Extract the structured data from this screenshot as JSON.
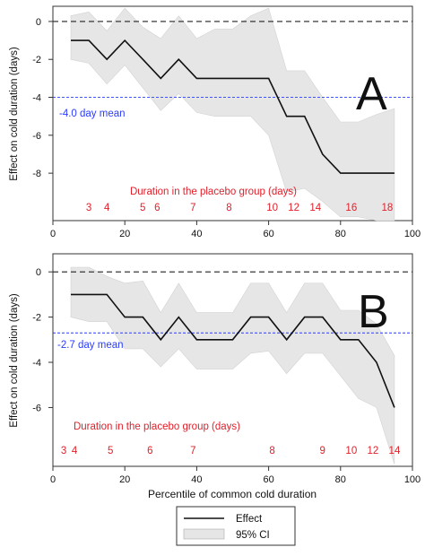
{
  "chart_data": [
    {
      "type": "line",
      "panel_label": "A",
      "ylabel": "Effect on cold duration (days)",
      "xlabel": "",
      "xlim": [
        0,
        100
      ],
      "ylim": [
        -10.5,
        0.8
      ],
      "xticks": [
        0,
        20,
        40,
        60,
        80,
        100
      ],
      "yticks": [
        0,
        -2,
        -4,
        -6,
        -8
      ],
      "x": [
        5,
        10,
        15,
        20,
        25,
        30,
        35,
        40,
        45,
        50,
        55,
        60,
        65,
        70,
        75,
        80,
        85,
        90,
        95
      ],
      "effect": [
        -1,
        -1,
        -2,
        -1,
        -2,
        -3,
        -2,
        -3,
        -3,
        -3,
        -3,
        -3,
        -5,
        -5,
        -7,
        -8,
        -8,
        -8,
        -8
      ],
      "ci_upper": [
        0.3,
        0.5,
        -0.5,
        0.7,
        -0.3,
        -0.9,
        0.3,
        -0.9,
        -0.4,
        -0.4,
        0.3,
        0.7,
        -2.6,
        -2.6,
        -4.0,
        -5.3,
        -5.3,
        -4.9,
        -4.6
      ],
      "ci_lower": [
        -2.0,
        -2.2,
        -3.3,
        -2.3,
        -3.5,
        -4.7,
        -3.8,
        -4.8,
        -5.0,
        -5.0,
        -5.0,
        -6.0,
        -9.0,
        -8.8,
        -9.5,
        -10.3,
        -10.3,
        -10.5,
        -10.5
      ],
      "reference_lines": [
        {
          "y": 0,
          "color": "#222222",
          "style": "dashed"
        },
        {
          "y": -4.0,
          "color": "#2a3cff",
          "style": "dashed",
          "label": "-4.0 day mean"
        }
      ],
      "placebo_title": "Duration in the placebo group (days)",
      "placebo_durations": [
        {
          "x": 10,
          "label": "3"
        },
        {
          "x": 15,
          "label": "4"
        },
        {
          "x": 25,
          "label": "5"
        },
        {
          "x": 29,
          "label": "6"
        },
        {
          "x": 39,
          "label": "7"
        },
        {
          "x": 49,
          "label": "8"
        },
        {
          "x": 61,
          "label": "10"
        },
        {
          "x": 67,
          "label": "12"
        },
        {
          "x": 73,
          "label": "14"
        },
        {
          "x": 83,
          "label": "16"
        },
        {
          "x": 93,
          "label": "18"
        }
      ]
    },
    {
      "type": "line",
      "panel_label": "B",
      "ylabel": "Effect on cold duration (days)",
      "xlabel": "Percentile of common cold duration",
      "xlim": [
        0,
        100
      ],
      "ylim": [
        -8.6,
        0.8
      ],
      "xticks": [
        0,
        20,
        40,
        60,
        80,
        100
      ],
      "yticks": [
        0,
        -2,
        -4,
        -6
      ],
      "x": [
        5,
        10,
        15,
        20,
        25,
        30,
        35,
        40,
        45,
        50,
        55,
        60,
        65,
        70,
        75,
        80,
        85,
        90,
        95
      ],
      "effect": [
        -1,
        -1,
        -1,
        -2,
        -2,
        -3,
        -2,
        -3,
        -3,
        -3,
        -2,
        -2,
        -3,
        -2,
        -2,
        -3,
        -3,
        -4,
        -6
      ],
      "ci_upper": [
        0.2,
        0.2,
        -0.2,
        -0.5,
        -0.4,
        -1.8,
        -0.5,
        -1.8,
        -1.8,
        -1.8,
        -0.5,
        -0.5,
        -1.8,
        -0.5,
        -0.5,
        -1.7,
        -1.7,
        -2.3,
        -3.7
      ],
      "ci_lower": [
        -2.0,
        -2.2,
        -2.2,
        -3.4,
        -3.4,
        -4.2,
        -3.4,
        -4.3,
        -4.3,
        -4.3,
        -3.6,
        -3.5,
        -4.5,
        -3.6,
        -3.6,
        -4.6,
        -5.6,
        -6.0,
        -8.5
      ],
      "reference_lines": [
        {
          "y": 0,
          "color": "#222222",
          "style": "dashed"
        },
        {
          "y": -2.7,
          "color": "#2a3cff",
          "style": "dashed",
          "label": "-2.7 day mean"
        }
      ],
      "placebo_title": "Duration in the placebo group (days)",
      "placebo_durations": [
        {
          "x": 3,
          "label": "3"
        },
        {
          "x": 6,
          "label": "4"
        },
        {
          "x": 16,
          "label": "5"
        },
        {
          "x": 27,
          "label": "6"
        },
        {
          "x": 39,
          "label": "7"
        },
        {
          "x": 61,
          "label": "8"
        },
        {
          "x": 75,
          "label": "9"
        },
        {
          "x": 83,
          "label": "10"
        },
        {
          "x": 89,
          "label": "12"
        },
        {
          "x": 95,
          "label": "14"
        }
      ]
    }
  ],
  "legend": {
    "items": [
      {
        "label": "Effect",
        "kind": "line",
        "color": "#111111"
      },
      {
        "label": "95% CI",
        "kind": "area",
        "color": "#e6e6e6"
      }
    ]
  },
  "colors": {
    "effect_line": "#111111",
    "ci_fill": "#e6e6e6",
    "placebo_text": "#e0202a",
    "mean_line": "#2a3cff",
    "zero_line": "#222222"
  }
}
